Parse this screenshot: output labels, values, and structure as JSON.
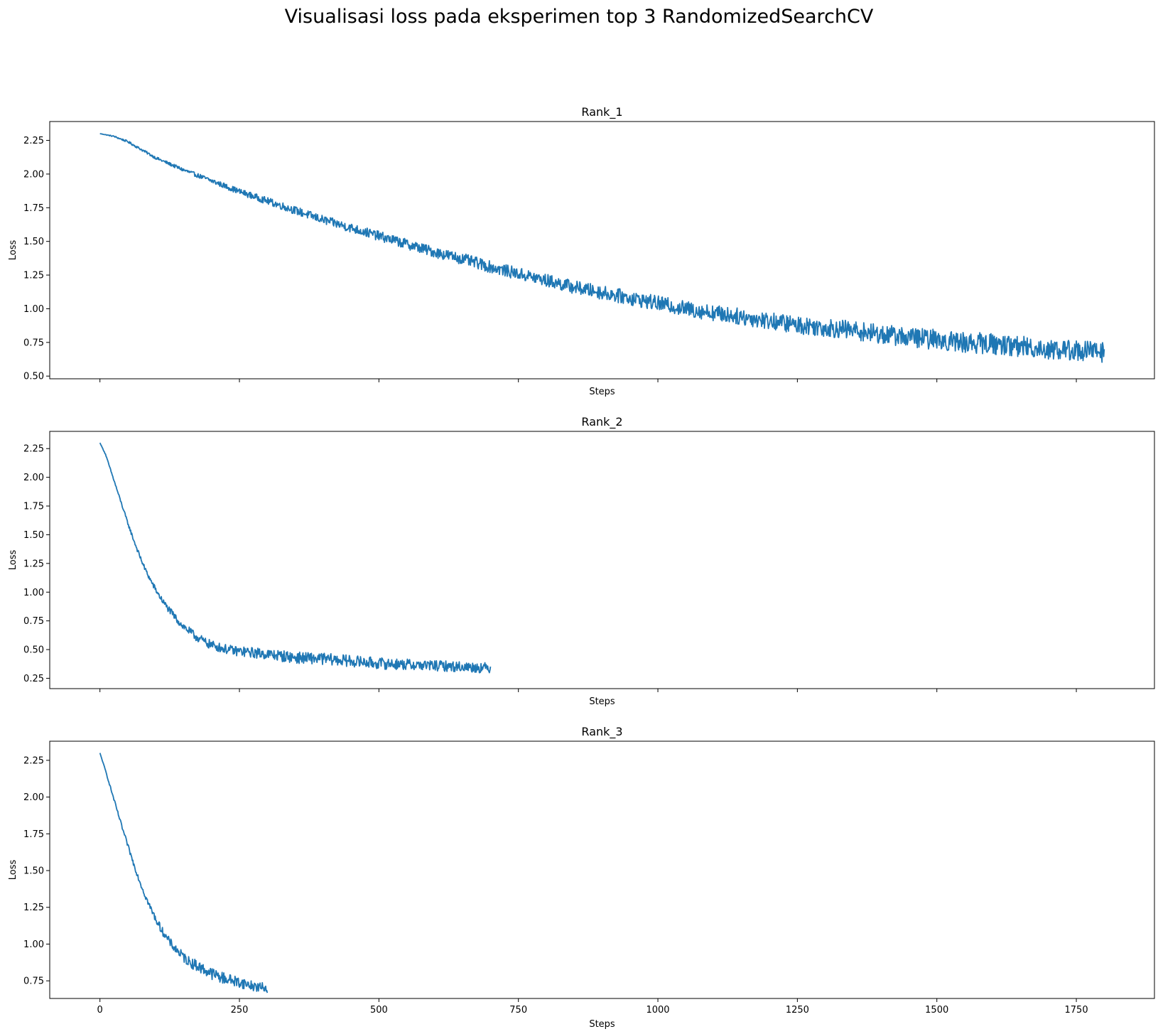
{
  "figure": {
    "suptitle": "Visualisasi loss pada eksperimen top 3 RandomizedSearchCV"
  },
  "style": {
    "line_color": "#1f77b4",
    "background": "#ffffff",
    "axis_color": "#000000"
  },
  "chart_data": [
    {
      "type": "line",
      "title": "Rank_1",
      "xlabel": "Steps",
      "ylabel": "Loss",
      "xlim": [
        -90,
        1890
      ],
      "ylim": [
        0.48,
        2.39
      ],
      "xticks": [
        0,
        250,
        500,
        750,
        1000,
        1250,
        1500,
        1750
      ],
      "show_xtick_labels": false,
      "yticks": [
        0.5,
        0.75,
        1.0,
        1.25,
        1.5,
        1.75,
        2.0,
        2.25
      ],
      "ytick_labels": [
        "0.50",
        "0.75",
        "1.00",
        "1.25",
        "1.50",
        "1.75",
        "2.00",
        "2.25"
      ],
      "grid": false,
      "series": [
        {
          "x": [
            0,
            25,
            50,
            100,
            150,
            200,
            250,
            300,
            350,
            400,
            450,
            500,
            550,
            600,
            650,
            700,
            750,
            800,
            850,
            900,
            950,
            1000,
            1050,
            1100,
            1150,
            1200,
            1250,
            1300,
            1350,
            1400,
            1450,
            1500,
            1550,
            1600,
            1650,
            1700,
            1750,
            1800
          ],
          "y": [
            2.3,
            2.28,
            2.24,
            2.12,
            2.03,
            1.95,
            1.87,
            1.8,
            1.73,
            1.66,
            1.6,
            1.54,
            1.48,
            1.42,
            1.37,
            1.31,
            1.26,
            1.21,
            1.16,
            1.12,
            1.08,
            1.04,
            1.0,
            0.97,
            0.94,
            0.91,
            0.88,
            0.86,
            0.84,
            0.81,
            0.79,
            0.77,
            0.75,
            0.74,
            0.72,
            0.7,
            0.69,
            0.68
          ],
          "noise": [
            0.0,
            0.005,
            0.008,
            0.01,
            0.014,
            0.018,
            0.022,
            0.026,
            0.03,
            0.032,
            0.034,
            0.036,
            0.038,
            0.04,
            0.042,
            0.044,
            0.046,
            0.048,
            0.05,
            0.052,
            0.054,
            0.056,
            0.058,
            0.06,
            0.062,
            0.064,
            0.066,
            0.068,
            0.07,
            0.072,
            0.074,
            0.076,
            0.078,
            0.078,
            0.078,
            0.078,
            0.078,
            0.08
          ]
        }
      ]
    },
    {
      "type": "line",
      "title": "Rank_2",
      "xlabel": "Steps",
      "ylabel": "Loss",
      "xlim": [
        -90,
        1890
      ],
      "ylim": [
        0.16,
        2.4
      ],
      "xticks": [
        0,
        250,
        500,
        750,
        1000,
        1250,
        1500,
        1750
      ],
      "show_xtick_labels": false,
      "yticks": [
        0.25,
        0.5,
        0.75,
        1.0,
        1.25,
        1.5,
        1.75,
        2.0,
        2.25
      ],
      "ytick_labels": [
        "0.25",
        "0.50",
        "0.75",
        "1.00",
        "1.25",
        "1.50",
        "1.75",
        "2.00",
        "2.25"
      ],
      "grid": false,
      "series": [
        {
          "x": [
            0,
            10,
            20,
            30,
            40,
            50,
            60,
            70,
            80,
            90,
            100,
            110,
            120,
            130,
            140,
            150,
            160,
            170,
            180,
            190,
            200,
            220,
            240,
            260,
            280,
            300,
            350,
            400,
            450,
            500,
            550,
            600,
            650,
            700
          ],
          "y": [
            2.3,
            2.2,
            2.05,
            1.9,
            1.75,
            1.6,
            1.46,
            1.33,
            1.21,
            1.11,
            1.02,
            0.94,
            0.87,
            0.81,
            0.75,
            0.7,
            0.66,
            0.62,
            0.59,
            0.56,
            0.54,
            0.51,
            0.49,
            0.48,
            0.47,
            0.46,
            0.43,
            0.42,
            0.4,
            0.38,
            0.37,
            0.36,
            0.35,
            0.34
          ],
          "noise": [
            0.0,
            0.005,
            0.008,
            0.01,
            0.012,
            0.014,
            0.016,
            0.018,
            0.02,
            0.022,
            0.024,
            0.026,
            0.028,
            0.03,
            0.032,
            0.034,
            0.036,
            0.038,
            0.04,
            0.04,
            0.04,
            0.04,
            0.042,
            0.044,
            0.046,
            0.048,
            0.05,
            0.05,
            0.05,
            0.05,
            0.048,
            0.046,
            0.046,
            0.046
          ]
        }
      ]
    },
    {
      "type": "line",
      "title": "Rank_3",
      "xlabel": "Steps",
      "ylabel": "Loss",
      "xlim": [
        -90,
        1890
      ],
      "ylim": [
        0.63,
        2.38
      ],
      "xticks": [
        0,
        250,
        500,
        750,
        1000,
        1250,
        1500,
        1750
      ],
      "xtick_labels": [
        "0",
        "250",
        "500",
        "750",
        "1000",
        "1250",
        "1500",
        "1750"
      ],
      "show_xtick_labels": true,
      "yticks": [
        0.75,
        1.0,
        1.25,
        1.5,
        1.75,
        2.0,
        2.25
      ],
      "ytick_labels": [
        "0.75",
        "1.00",
        "1.25",
        "1.50",
        "1.75",
        "2.00",
        "2.25"
      ],
      "grid": false,
      "series": [
        {
          "x": [
            0,
            10,
            20,
            30,
            40,
            50,
            60,
            70,
            80,
            90,
            100,
            110,
            120,
            130,
            140,
            150,
            160,
            170,
            180,
            190,
            200,
            220,
            240,
            260,
            280,
            300
          ],
          "y": [
            2.3,
            2.18,
            2.05,
            1.92,
            1.79,
            1.67,
            1.55,
            1.44,
            1.34,
            1.25,
            1.17,
            1.1,
            1.04,
            0.99,
            0.95,
            0.91,
            0.88,
            0.86,
            0.84,
            0.82,
            0.8,
            0.77,
            0.75,
            0.73,
            0.71,
            0.7
          ],
          "noise": [
            0.0,
            0.005,
            0.008,
            0.01,
            0.012,
            0.014,
            0.016,
            0.018,
            0.02,
            0.022,
            0.024,
            0.026,
            0.028,
            0.03,
            0.032,
            0.034,
            0.036,
            0.038,
            0.04,
            0.04,
            0.04,
            0.04,
            0.038,
            0.036,
            0.034,
            0.032
          ]
        }
      ]
    }
  ]
}
